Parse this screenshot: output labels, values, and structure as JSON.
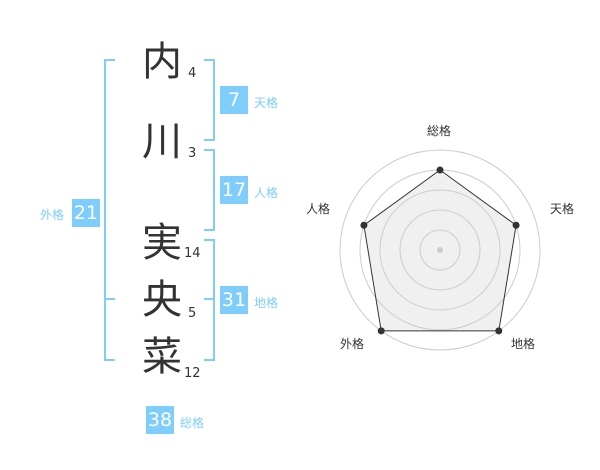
{
  "name_chars": [
    {
      "char": "内",
      "strokes": "4"
    },
    {
      "char": "川",
      "strokes": "3"
    },
    {
      "char": "実",
      "strokes": "14"
    },
    {
      "char": "央",
      "strokes": "5"
    },
    {
      "char": "菜",
      "strokes": "12"
    }
  ],
  "fortunes": {
    "tenkaku": {
      "label": "天格",
      "value": "7"
    },
    "jinkaku": {
      "label": "人格",
      "value": "17"
    },
    "chikaku": {
      "label": "地格",
      "value": "31"
    },
    "gaikaku": {
      "label": "外格",
      "value": "21"
    },
    "soukaku": {
      "label": "総格",
      "value": "38"
    }
  },
  "accent_color": "#7fcdfa",
  "chart_data": {
    "type": "radar",
    "axes": [
      "総格",
      "天格",
      "地格",
      "外格",
      "人格"
    ],
    "values": [
      4,
      4,
      5,
      5,
      4
    ],
    "range": [
      0,
      5
    ],
    "rings": 5
  }
}
